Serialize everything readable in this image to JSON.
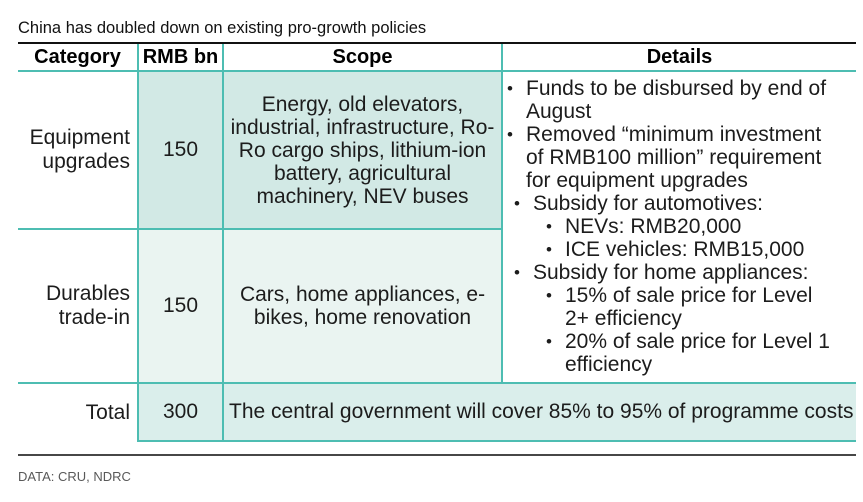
{
  "title": "China has doubled down on existing pro-growth policies",
  "source": "DATA: CRU, NDRC",
  "colors": {
    "teal_line": "#4dbdb2",
    "row1_fill": "#d2e9e5",
    "row2_fill": "#eaf4f1",
    "total_fill": "#daeeeb",
    "title_rule": "#111111",
    "footer_rule": "#474747",
    "footer_text": "#595959"
  },
  "table": {
    "headers": [
      "Category",
      "RMB bn",
      "Scope",
      "Details"
    ],
    "rows": [
      {
        "category": "Equipment upgrades",
        "rmb_bn": "150",
        "scope": "Energy, old elevators, industrial, infrastructure, Ro-Ro cargo ships, lithium-ion battery, agricultural machinery, NEV buses"
      },
      {
        "category": "Durables trade-in",
        "rmb_bn": "150",
        "scope": "Cars, home appliances, e-bikes, home renovation"
      }
    ],
    "details_bullets": [
      {
        "level": 1,
        "text": "Funds to be disbursed by end of August"
      },
      {
        "level": 1,
        "text": "Removed “minimum investment of RMB100 million” requirement for equipment upgrades"
      },
      {
        "level": 1,
        "text": "Subsidy for automotives:"
      },
      {
        "level": 2,
        "text": "NEVs: RMB20,000"
      },
      {
        "level": 2,
        "text": "ICE vehicles: RMB15,000"
      },
      {
        "level": 1,
        "text": "Subsidy for home appliances:"
      },
      {
        "level": 2,
        "text": "15% of sale price for Level 2+ efficiency"
      },
      {
        "level": 2,
        "text": "20% of sale price for Level 1 efficiency"
      }
    ],
    "total": {
      "category": "Total",
      "rmb_bn": "300",
      "note": "The central government will cover 85% to 95% of programme costs"
    }
  },
  "chart_data": {
    "type": "table",
    "title": "China has doubled down on existing pro-growth policies",
    "source": "DATA: CRU, NDRC",
    "columns": [
      "Category",
      "RMB bn",
      "Scope",
      "Details"
    ],
    "rows": [
      [
        "Equipment upgrades",
        150,
        "Energy, old elevators, industrial, infrastructure, Ro-Ro cargo ships, lithium-ion battery, agricultural machinery, NEV buses",
        "Funds to be disbursed by end of August; Removed “minimum investment of RMB100 million” requirement for equipment upgrades; Subsidy for automotives: NEVs: RMB20,000, ICE vehicles: RMB15,000; Subsidy for home appliances: 15% of sale price for Level 2+ efficiency, 20% of sale price for Level 1 efficiency"
      ],
      [
        "Durables trade-in",
        150,
        "Cars, home appliances, e-bikes, home renovation",
        ""
      ],
      [
        "Total",
        300,
        "The central government will cover 85% to 95% of programme costs",
        ""
      ]
    ]
  }
}
